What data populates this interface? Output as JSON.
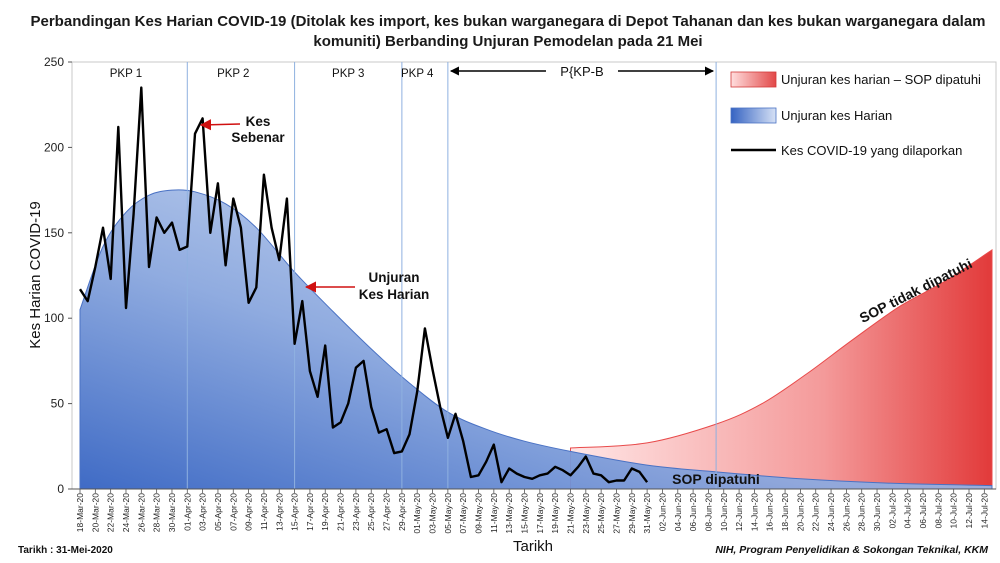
{
  "chart_data": {
    "type": "area",
    "title_line1": "Perbandingan Kes Harian COVID-19 (Ditolak kes import, kes bukan warganegara di Depot Tahanan dan kes bukan warganegara dalam",
    "title_line2": "komuniti) Berbanding Unjuran Pemodelan pada 21 Mei",
    "xlabel": "Tarikh",
    "ylabel": "Kes Harian COVID-19",
    "ylim": [
      0,
      250
    ],
    "yticks": [
      0,
      50,
      100,
      150,
      200,
      250
    ],
    "start_date": "2020-03-18",
    "end_date": "2020-07-15",
    "xtick_labels": [
      "18-Mar-20",
      "20-Mar-20",
      "22-Mar-20",
      "24-Mar-20",
      "26-Mar-20",
      "28-Mar-20",
      "30-Mar-20",
      "01-Apr-20",
      "03-Apr-20",
      "05-Apr-20",
      "07-Apr-20",
      "09-Apr-20",
      "11-Apr-20",
      "13-Apr-20",
      "15-Apr-20",
      "17-Apr-20",
      "19-Apr-20",
      "21-Apr-20",
      "23-Apr-20",
      "25-Apr-20",
      "27-Apr-20",
      "29-Apr-20",
      "01-May-20",
      "03-May-20",
      "05-May-20",
      "07-May-20",
      "09-May-20",
      "11-May-20",
      "13-May-20",
      "15-May-20",
      "17-May-20",
      "19-May-20",
      "21-May-20",
      "23-May-20",
      "25-May-20",
      "27-May-20",
      "29-May-20",
      "31-May-20",
      "02-Jun-20",
      "04-Jun-20",
      "06-Jun-20",
      "08-Jun-20",
      "10-Jun-20",
      "12-Jun-20",
      "14-Jun-20",
      "16-Jun-20",
      "18-Jun-20",
      "20-Jun-20",
      "22-Jun-20",
      "24-Jun-20",
      "26-Jun-20",
      "28-Jun-20",
      "30-Jun-20",
      "02-Jul-20",
      "04-Jul-20",
      "06-Jul-20",
      "08-Jul-20",
      "10-Jul-20",
      "12-Jul-20",
      "14-Jul-20"
    ],
    "phase_lines": [
      "2020-04-01",
      "2020-04-15",
      "2020-04-29",
      "2020-05-05",
      "2020-06-09"
    ],
    "phases": [
      {
        "label": "PKP 1",
        "date": "2020-03-24"
      },
      {
        "label": "PKP 2",
        "date": "2020-04-07"
      },
      {
        "label": "PKP 3",
        "date": "2020-04-22"
      },
      {
        "label": "PKP 4",
        "date": "2020-05-01"
      }
    ],
    "pkpb": {
      "label": "P{KP-B",
      "date_from": "2020-05-05",
      "date_to": "2020-06-09"
    },
    "series": [
      {
        "name": "Unjuran kes harian – SOP dipatuhi",
        "color": "#e84a4a",
        "kind": "area",
        "points": [
          [
            "2020-05-21",
            24
          ],
          [
            "2020-05-31",
            27
          ],
          [
            "2020-06-09",
            38
          ],
          [
            "2020-06-15",
            50
          ],
          [
            "2020-06-21",
            68
          ],
          [
            "2020-06-27",
            88
          ],
          [
            "2020-07-03",
            107
          ],
          [
            "2020-07-09",
            122
          ],
          [
            "2020-07-15",
            140
          ]
        ]
      },
      {
        "name": "Unjuran kes Harian",
        "color": "#3b6fc8",
        "kind": "area",
        "points": [
          [
            "2020-03-18",
            105
          ],
          [
            "2020-03-21",
            142
          ],
          [
            "2020-03-24",
            162
          ],
          [
            "2020-03-27",
            172
          ],
          [
            "2020-03-30",
            175
          ],
          [
            "2020-04-02",
            174
          ],
          [
            "2020-04-06",
            167
          ],
          [
            "2020-04-10",
            153
          ],
          [
            "2020-04-15",
            127
          ],
          [
            "2020-04-20",
            104
          ],
          [
            "2020-04-25",
            82
          ],
          [
            "2020-04-30",
            62
          ],
          [
            "2020-05-05",
            45
          ],
          [
            "2020-05-10",
            35
          ],
          [
            "2020-05-15",
            28
          ],
          [
            "2020-05-21",
            22
          ],
          [
            "2020-05-31",
            14
          ],
          [
            "2020-06-09",
            10
          ],
          [
            "2020-06-20",
            6
          ],
          [
            "2020-07-01",
            3.5
          ],
          [
            "2020-07-15",
            2
          ]
        ]
      },
      {
        "name": "Kes COVID-19 yang dilaporkan",
        "color": "#000000",
        "kind": "line",
        "values": [
          117,
          110,
          130,
          153,
          123,
          212,
          106,
          161,
          235,
          130,
          159,
          150,
          156,
          140,
          142,
          208,
          217,
          150,
          179,
          131,
          170,
          153,
          109,
          118,
          184,
          153,
          134,
          170,
          85,
          110,
          69,
          54,
          84,
          36,
          39,
          50,
          71,
          75,
          48,
          33,
          35,
          21,
          22,
          32,
          57,
          94,
          70,
          48,
          30,
          44,
          28,
          7,
          8,
          16,
          26,
          4,
          12,
          9,
          7,
          6,
          8,
          9,
          13,
          11,
          8,
          13,
          19,
          9,
          8,
          4,
          5,
          5,
          12,
          10,
          4
        ]
      }
    ],
    "legend_position": "top-right",
    "annotations": [
      {
        "text_line1": "Kes",
        "text_line2": "Sebenar",
        "target_date": "2020-04-03",
        "target_value": 212
      },
      {
        "text_line1": "Unjuran",
        "text_line2": "Kes Harian",
        "target_date": "2020-04-16",
        "target_value": 118
      },
      {
        "text_line1": "SOP dipatuhi"
      },
      {
        "text_line1": "SOP tidak dipatuhi"
      }
    ]
  },
  "footer": {
    "left": "Tarikh : 31-Mei-2020",
    "right": "NIH, Program Penyelidikan & Sokongan Teknikal, KKM"
  }
}
